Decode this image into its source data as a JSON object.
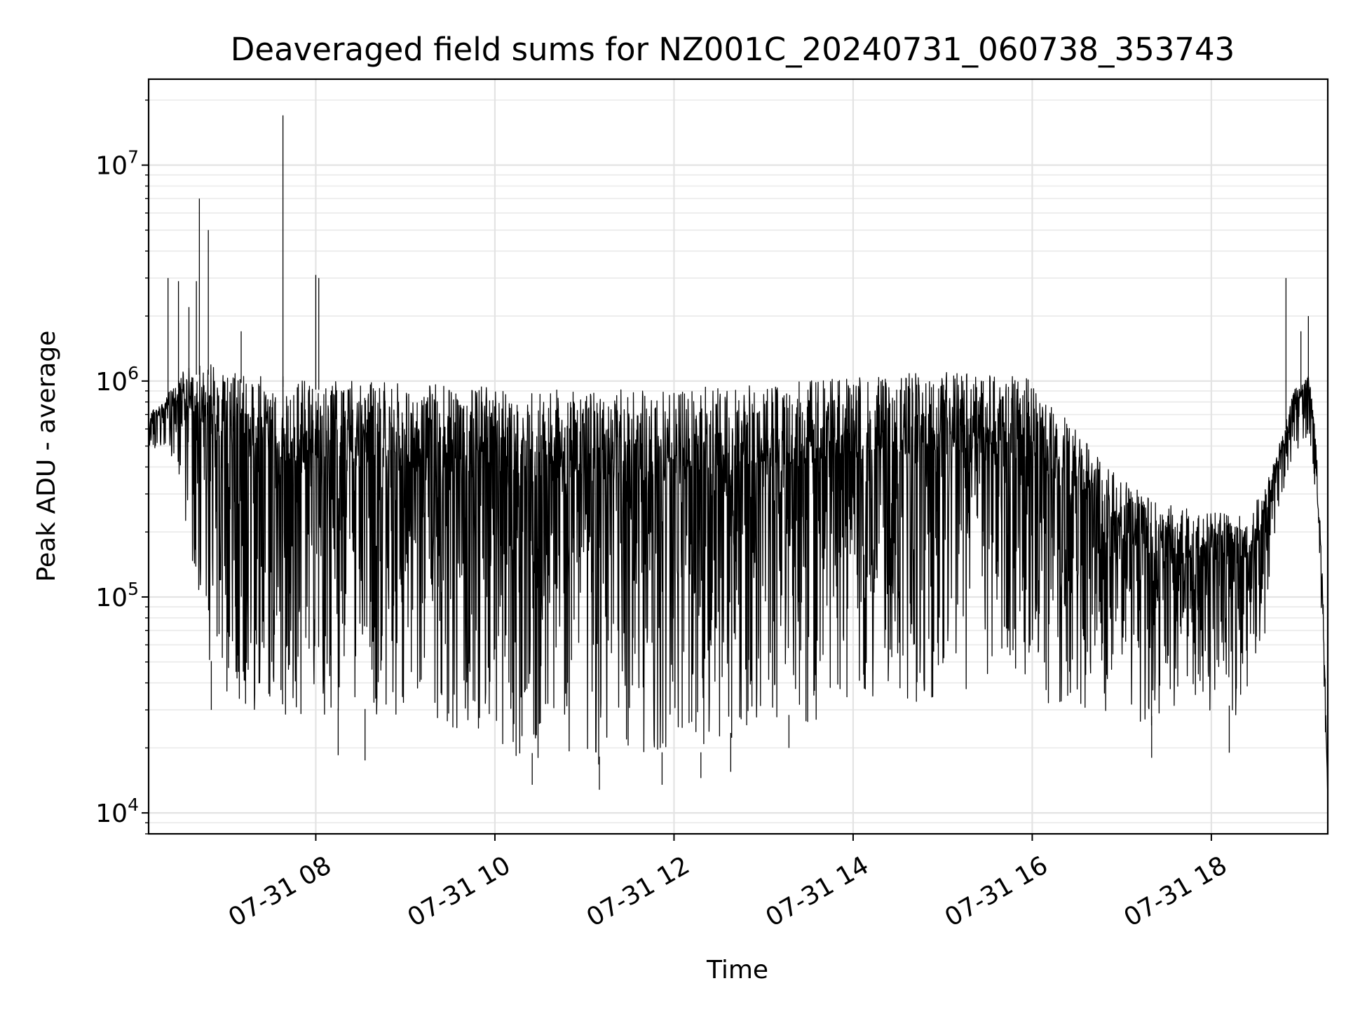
{
  "chart_data": {
    "type": "line",
    "title": "Deaveraged field sums for NZ001C_20240731_060738_353743",
    "xlabel": "Time",
    "ylabel": "Peak ADU - average",
    "yscale": "log",
    "xlim": [
      "2024-07-31 06:08",
      "2024-07-31 19:18"
    ],
    "ylim": [
      8000,
      25000000
    ],
    "grid": true,
    "legend": "none",
    "line_color": "#000000",
    "x_ticks": [
      {
        "value": "2024-07-31 08:00",
        "label": "07-31 08"
      },
      {
        "value": "2024-07-31 10:00",
        "label": "07-31 10"
      },
      {
        "value": "2024-07-31 12:00",
        "label": "07-31 12"
      },
      {
        "value": "2024-07-31 14:00",
        "label": "07-31 14"
      },
      {
        "value": "2024-07-31 16:00",
        "label": "07-31 16"
      },
      {
        "value": "2024-07-31 18:00",
        "label": "07-31 18"
      }
    ],
    "y_ticks": [
      {
        "value": 10000,
        "base": "10",
        "exp": "4"
      },
      {
        "value": 100000,
        "base": "10",
        "exp": "5"
      },
      {
        "value": 1000000,
        "base": "10",
        "exp": "6"
      },
      {
        "value": 10000000,
        "base": "10",
        "exp": "7"
      }
    ],
    "series": [
      {
        "envelope": [
          {
            "x": "2024-07-31 06:08",
            "upper": 700000,
            "lower": 480000
          },
          {
            "x": "2024-07-31 06:20",
            "upper": 850000,
            "lower": 480000
          },
          {
            "x": "2024-07-31 06:30",
            "upper": 1100000,
            "lower": 300000
          },
          {
            "x": "2024-07-31 06:40",
            "upper": 1200000,
            "lower": 100000
          },
          {
            "x": "2024-07-31 06:50",
            "upper": 1200000,
            "lower": 45000
          },
          {
            "x": "2024-07-31 07:10",
            "upper": 1100000,
            "lower": 30000
          },
          {
            "x": "2024-07-31 07:40",
            "upper": 1050000,
            "lower": 28000
          },
          {
            "x": "2024-07-31 08:20",
            "upper": 1000000,
            "lower": 27000
          },
          {
            "x": "2024-07-31 09:00",
            "upper": 980000,
            "lower": 27000
          },
          {
            "x": "2024-07-31 09:40",
            "upper": 950000,
            "lower": 24000
          },
          {
            "x": "2024-07-31 10:20",
            "upper": 920000,
            "lower": 17000
          },
          {
            "x": "2024-07-31 11:00",
            "upper": 900000,
            "lower": 16000
          },
          {
            "x": "2024-07-31 11:40",
            "upper": 920000,
            "lower": 17000
          },
          {
            "x": "2024-07-31 12:20",
            "upper": 950000,
            "lower": 17000
          },
          {
            "x": "2024-07-31 12:50",
            "upper": 960000,
            "lower": 24000
          },
          {
            "x": "2024-07-31 13:30",
            "upper": 1000000,
            "lower": 26000
          },
          {
            "x": "2024-07-31 14:10",
            "upper": 1050000,
            "lower": 30000
          },
          {
            "x": "2024-07-31 14:50",
            "upper": 1100000,
            "lower": 33000
          },
          {
            "x": "2024-07-31 15:30",
            "upper": 1100000,
            "lower": 35000
          },
          {
            "x": "2024-07-31 15:55",
            "upper": 1050000,
            "lower": 35000
          },
          {
            "x": "2024-07-31 16:20",
            "upper": 700000,
            "lower": 30000
          },
          {
            "x": "2024-07-31 16:50",
            "upper": 400000,
            "lower": 28000
          },
          {
            "x": "2024-07-31 17:20",
            "upper": 280000,
            "lower": 25000
          },
          {
            "x": "2024-07-31 17:50",
            "upper": 250000,
            "lower": 28000
          },
          {
            "x": "2024-07-31 18:20",
            "upper": 240000,
            "lower": 28000
          },
          {
            "x": "2024-07-31 18:35",
            "upper": 300000,
            "lower": 60000
          },
          {
            "x": "2024-07-31 18:45",
            "upper": 500000,
            "lower": 250000
          },
          {
            "x": "2024-07-31 18:55",
            "upper": 900000,
            "lower": 450000
          },
          {
            "x": "2024-07-31 19:05",
            "upper": 1100000,
            "lower": 550000
          },
          {
            "x": "2024-07-31 19:10",
            "upper": 600000,
            "lower": 300000
          },
          {
            "x": "2024-07-31 19:15",
            "upper": 100000,
            "lower": 50000
          },
          {
            "x": "2024-07-31 19:18",
            "upper": 12000,
            "lower": 10000
          }
        ],
        "spikes": [
          {
            "x": "2024-07-31 06:21",
            "y": 3000000
          },
          {
            "x": "2024-07-31 06:28",
            "y": 2900000
          },
          {
            "x": "2024-07-31 06:35",
            "y": 2200000
          },
          {
            "x": "2024-07-31 06:40",
            "y": 2900000
          },
          {
            "x": "2024-07-31 06:42",
            "y": 7000000
          },
          {
            "x": "2024-07-31 06:48",
            "y": 5000000
          },
          {
            "x": "2024-07-31 07:10",
            "y": 1700000
          },
          {
            "x": "2024-07-31 07:38",
            "y": 17000000
          },
          {
            "x": "2024-07-31 08:00",
            "y": 3100000
          },
          {
            "x": "2024-07-31 08:02",
            "y": 3000000
          },
          {
            "x": "2024-07-31 18:50",
            "y": 3000000
          },
          {
            "x": "2024-07-31 19:05",
            "y": 2000000
          },
          {
            "x": "2024-07-31 19:00",
            "y": 1700000
          }
        ],
        "dips": [
          {
            "x": "2024-07-31 06:50",
            "y": 30000
          },
          {
            "x": "2024-07-31 08:15",
            "y": 18500
          },
          {
            "x": "2024-07-31 08:33",
            "y": 17500
          },
          {
            "x": "2024-07-31 10:25",
            "y": 13500
          },
          {
            "x": "2024-07-31 11:10",
            "y": 12800
          },
          {
            "x": "2024-07-31 11:52",
            "y": 13500
          },
          {
            "x": "2024-07-31 12:18",
            "y": 14500
          },
          {
            "x": "2024-07-31 12:38",
            "y": 15500
          },
          {
            "x": "2024-07-31 13:17",
            "y": 20000
          },
          {
            "x": "2024-07-31 17:20",
            "y": 18000
          },
          {
            "x": "2024-07-31 18:12",
            "y": 19000
          },
          {
            "x": "2024-07-31 19:18",
            "y": 11000
          }
        ]
      }
    ]
  }
}
